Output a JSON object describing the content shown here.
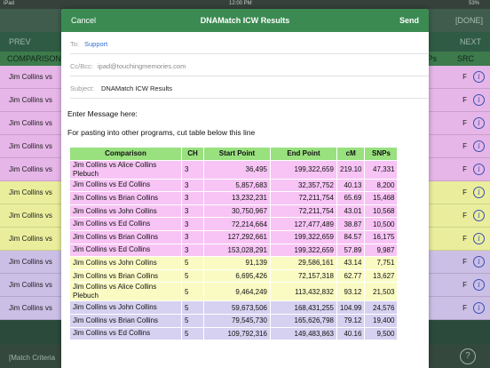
{
  "status_bar": {
    "carrier": "iPad",
    "time": "12:00 PM",
    "battery": "53%"
  },
  "background": {
    "done_label": "[DONE]",
    "prev_label": "PREV",
    "next_label": "NEXT",
    "header": {
      "left": "COMPARISON",
      "snps_partial": "Ps",
      "src": "SRC"
    },
    "rows": [
      {
        "name": "Jim Collins vs",
        "end": "11",
        "src": "F",
        "color": "#e6b6e8"
      },
      {
        "name": "Jim Collins vs",
        "end": "",
        "src": "F",
        "color": "#e6b6e8"
      },
      {
        "name": "Jim Collins vs",
        "end": "",
        "src": "F",
        "color": "#e6b6e8"
      },
      {
        "name": "Jim Collins vs",
        "end": "",
        "src": "F",
        "color": "#e6b6e8"
      },
      {
        "name": "Jim Collins vs",
        "end": "37",
        "src": "F",
        "color": "#e6b6e8"
      },
      {
        "name": "Jim Collins vs",
        "end": "51",
        "src": "F",
        "color": "#eaee9c"
      },
      {
        "name": "Jim Collins vs",
        "end": "27",
        "src": "F",
        "color": "#eaee9c"
      },
      {
        "name": "Jim Collins vs",
        "end": "03",
        "src": "F",
        "color": "#eaee9c"
      },
      {
        "name": "Jim Collins vs",
        "end": "76",
        "src": "F",
        "color": "#cbbfe6"
      },
      {
        "name": "Jim Collins vs",
        "end": "00",
        "src": "F",
        "color": "#cbbfe6"
      },
      {
        "name": "Jim Collins vs",
        "end": "00",
        "src": "F",
        "color": "#cbbfe6"
      }
    ],
    "footer_label": "[Match Criteria",
    "help_glyph": "?",
    "info_glyph": "i"
  },
  "modal": {
    "cancel_label": "Cancel",
    "title": "DNAMatch ICW Results",
    "send_label": "Send",
    "to_label": "To:",
    "to_value": "Support",
    "cc_label": "Cc/Bcc:",
    "cc_value": "ipad@touchingmemories.com",
    "subject_label": "Subject:",
    "subject_value": "DNAMatch ICW Results",
    "enter_message": "Enter Message here:",
    "paste_message": "For pasting into other programs, cut table below this line"
  },
  "table": {
    "headers": [
      "Comparison",
      "CH",
      "Start Point",
      "End Point",
      "cM",
      "SNPs"
    ],
    "colors": {
      "header": "#99e07f",
      "pink": "#f7c4f5",
      "yellow": "#f9fbc3",
      "lavender": "#d6d1f0"
    },
    "rows": [
      {
        "comparison": "Jim Collins vs Alice Collins Plebuch",
        "ch": "3",
        "start": "36,495",
        "end": "199,322,659",
        "cm": "219.10",
        "snps": "47,331",
        "group": "pink"
      },
      {
        "comparison": "Jim Collins vs Ed Collins",
        "ch": "3",
        "start": "5,857,683",
        "end": "32,357,752",
        "cm": "40.13",
        "snps": "8,200",
        "group": "pink"
      },
      {
        "comparison": "Jim Collins vs Brian Collins",
        "ch": "3",
        "start": "13,232,231",
        "end": "72,211,754",
        "cm": "65.69",
        "snps": "15,468",
        "group": "pink"
      },
      {
        "comparison": "Jim Collins vs John Collins",
        "ch": "3",
        "start": "30,750,967",
        "end": "72,211,754",
        "cm": "43.01",
        "snps": "10,568",
        "group": "pink"
      },
      {
        "comparison": "Jim Collins vs Ed Collins",
        "ch": "3",
        "start": "72,214,664",
        "end": "127,477,489",
        "cm": "38.87",
        "snps": "10,500",
        "group": "pink"
      },
      {
        "comparison": "Jim Collins vs Brian Collins",
        "ch": "3",
        "start": "127,292,661",
        "end": "199,322,659",
        "cm": "84.57",
        "snps": "16,175",
        "group": "pink"
      },
      {
        "comparison": "Jim Collins vs Ed Collins",
        "ch": "3",
        "start": "153,028,291",
        "end": "199,322,659",
        "cm": "57.89",
        "snps": "9,987",
        "group": "pink"
      },
      {
        "comparison": "Jim Collins vs John Collins",
        "ch": "5",
        "start": "91,139",
        "end": "29,586,161",
        "cm": "43.14",
        "snps": "7,751",
        "group": "yellow"
      },
      {
        "comparison": "Jim Collins vs Brian Collins",
        "ch": "5",
        "start": "6,695,426",
        "end": "72,157,318",
        "cm": "62.77",
        "snps": "13,627",
        "group": "yellow"
      },
      {
        "comparison": "Jim Collins vs Alice Collins Plebuch",
        "ch": "5",
        "start": "9,464,249",
        "end": "113,432,832",
        "cm": "93.12",
        "snps": "21,503",
        "group": "yellow"
      },
      {
        "comparison": "Jim Collins vs John Collins",
        "ch": "5",
        "start": "59,673,506",
        "end": "168,431,255",
        "cm": "104.99",
        "snps": "24,576",
        "group": "lav"
      },
      {
        "comparison": "Jim Collins vs Brian Collins",
        "ch": "5",
        "start": "79,545,730",
        "end": "165,626,798",
        "cm": "79.12",
        "snps": "19,400",
        "group": "lav"
      },
      {
        "comparison": "Jim Collins vs Ed Collins",
        "ch": "5",
        "start": "109,792,316",
        "end": "149,483,863",
        "cm": "40.16",
        "snps": "9,500",
        "group": "lav"
      }
    ]
  }
}
